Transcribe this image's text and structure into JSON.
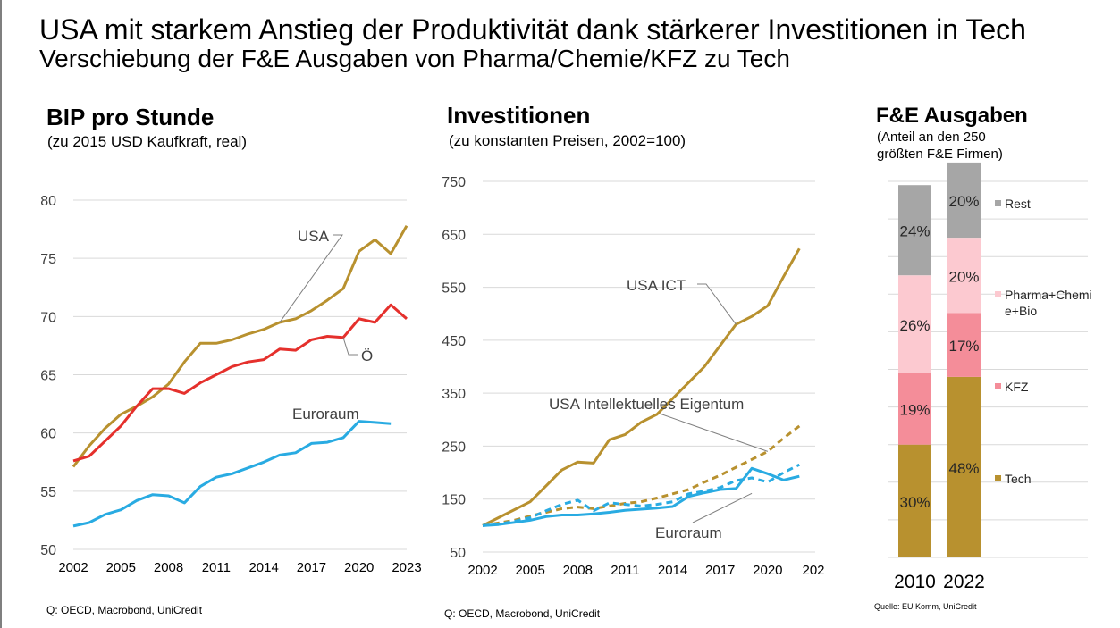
{
  "header": {
    "title": "USA mit starkem Anstieg der Produktivität dank stärkerer Investitionen in Tech",
    "subtitle": "Verschiebung der F&E Ausgaben von Pharma/Chemie/KFZ zu Tech"
  },
  "colors": {
    "usa": "#b8912f",
    "austria": "#e5302c",
    "euro": "#29abe2",
    "rest": "#a6a6a6",
    "pharma": "#fcc9d0",
    "kfz": "#f48d99",
    "tech": "#b8912f",
    "grid": "#d9d9d9"
  },
  "chart_data": [
    {
      "type": "line",
      "title": "BIP pro Stunde",
      "subtitle": "(zu 2015 USD Kaufkraft, real)",
      "ylim": [
        50,
        80
      ],
      "yticks": [
        "80",
        "75",
        "70",
        "65",
        "60",
        "55",
        "50"
      ],
      "xticks": [
        "2002",
        "2005",
        "2008",
        "2011",
        "2014",
        "2017",
        "2020",
        "2023"
      ],
      "x": [
        2002,
        2003,
        2004,
        2005,
        2006,
        2007,
        2008,
        2009,
        2010,
        2011,
        2012,
        2013,
        2014,
        2015,
        2016,
        2017,
        2018,
        2019,
        2020,
        2021,
        2022,
        2023
      ],
      "series": [
        {
          "name": "USA",
          "values": [
            57.1,
            58.9,
            60.4,
            61.6,
            62.3,
            63.1,
            64.2,
            66.1,
            67.7,
            67.7,
            68.0,
            68.5,
            68.9,
            69.5,
            69.8,
            70.5,
            71.4,
            72.4,
            75.6,
            76.6,
            75.4,
            77.8
          ]
        },
        {
          "name": "Ö",
          "values": [
            57.6,
            58.0,
            59.3,
            60.6,
            62.3,
            63.8,
            63.8,
            63.4,
            64.3,
            65.0,
            65.7,
            66.1,
            66.3,
            67.2,
            67.1,
            68.0,
            68.3,
            68.2,
            69.8,
            69.5,
            71.0,
            69.8
          ]
        },
        {
          "name": "Euroraum",
          "values": [
            52.0,
            52.3,
            53.0,
            53.4,
            54.2,
            54.7,
            54.6,
            54.0,
            55.4,
            56.2,
            56.5,
            57.0,
            57.5,
            58.1,
            58.3,
            59.1,
            59.2,
            59.6,
            61.0,
            60.9,
            60.8,
            null
          ]
        }
      ],
      "source": "Q: OECD, Macrobond, UniCredit"
    },
    {
      "type": "line",
      "title": "Investitionen",
      "subtitle": "(zu konstanten Preisen, 2002=100)",
      "ylim": [
        50,
        750
      ],
      "yticks": [
        "750",
        "650",
        "550",
        "450",
        "350",
        "250",
        "150",
        "50"
      ],
      "xticks": [
        "2002",
        "2005",
        "2008",
        "2011",
        "2014",
        "2017",
        "2020",
        "202"
      ],
      "x": [
        2002,
        2003,
        2004,
        2005,
        2006,
        2007,
        2008,
        2009,
        2010,
        2011,
        2012,
        2013,
        2014,
        2015,
        2016,
        2017,
        2018,
        2019,
        2020,
        2021,
        2022
      ],
      "series": [
        {
          "name": "USA ICT",
          "style": "solid",
          "color": "usa",
          "values": [
            100,
            115,
            130,
            145,
            175,
            205,
            220,
            218,
            262,
            272,
            295,
            310,
            340,
            370,
            400,
            440,
            480,
            495,
            515,
            570,
            623
          ]
        },
        {
          "name": "USA Intellektuelles Eigentum",
          "style": "dashed",
          "color": "usa",
          "values": [
            100,
            105,
            110,
            118,
            125,
            132,
            135,
            132,
            137,
            142,
            145,
            152,
            160,
            168,
            182,
            195,
            210,
            225,
            240,
            265,
            288
          ]
        },
        {
          "name": "Euroraum",
          "style": "solid",
          "color": "euro",
          "values": [
            100,
            102,
            106,
            110,
            117,
            120,
            120,
            122,
            125,
            129,
            131,
            133,
            136,
            155,
            162,
            168,
            170,
            208,
            198,
            186,
            193
          ]
        },
        {
          "name": "Euroraum",
          "style": "dashed",
          "color": "euro",
          "values": [
            100,
            103,
            108,
            115,
            128,
            140,
            148,
            128,
            143,
            140,
            137,
            140,
            145,
            160,
            165,
            172,
            185,
            190,
            182,
            200,
            215
          ]
        }
      ],
      "annotations": [
        "USA ICT",
        "USA Intellektuelles  Eigentum",
        "Euroraum"
      ],
      "source": "Q: OECD, Macrobond, UniCredit"
    },
    {
      "type": "bar",
      "stacked": true,
      "title": "F&E Ausgaben",
      "subtitle": [
        "(Anteil an den 250",
        "größten F&E Firmen)"
      ],
      "categories": [
        "2010",
        "2022"
      ],
      "series": [
        {
          "name": "Tech",
          "values": [
            30,
            48
          ],
          "labels": [
            "30%",
            "48%"
          ]
        },
        {
          "name": "KFZ",
          "values": [
            19,
            17
          ],
          "labels": [
            "19%",
            "17%"
          ]
        },
        {
          "name": "Pharma+Chemie+Bio",
          "values": [
            26,
            20
          ],
          "labels": [
            "26%",
            "20%"
          ]
        },
        {
          "name": "Rest",
          "values": [
            24,
            20
          ],
          "labels": [
            "24%",
            "20%"
          ]
        }
      ],
      "legend": [
        "Rest",
        "Pharma+Chemi",
        "e+Bio",
        "KFZ",
        "Tech"
      ],
      "source": "Quelle: EU Komm, UniCredit"
    }
  ]
}
